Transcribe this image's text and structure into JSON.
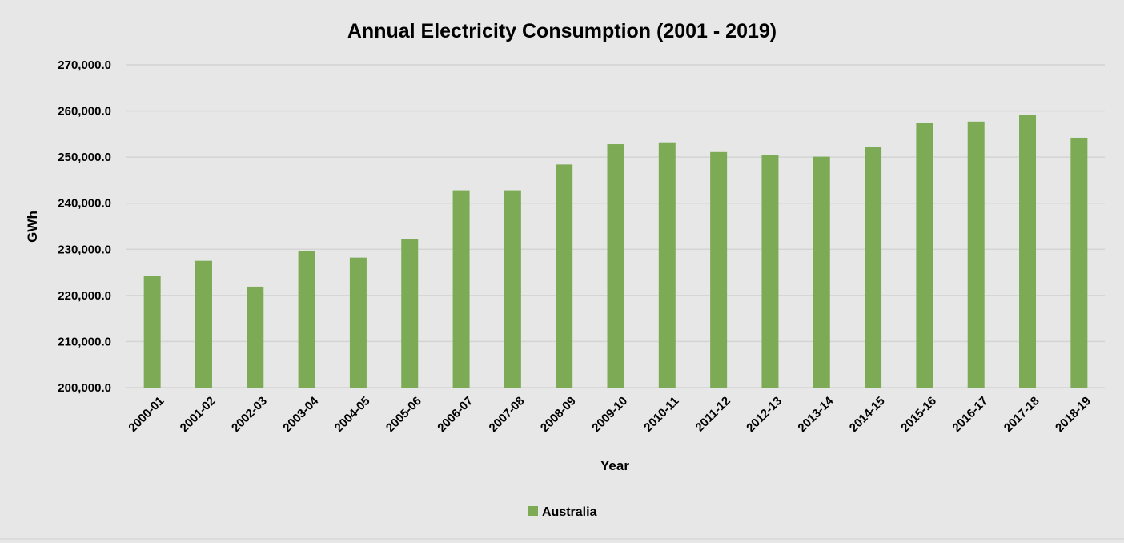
{
  "chart_data": {
    "type": "bar",
    "title": "Annual Electricity Consumption (2001 - 2019)",
    "xlabel": "Year",
    "ylabel": "GWh",
    "categories": [
      "2000-01",
      "2001-02",
      "2002-03",
      "2003-04",
      "2004-05",
      "2005-06",
      "2006-07",
      "2007-08",
      "2008-09",
      "2009-10",
      "2010-11",
      "2011-12",
      "2012-13",
      "2013-14",
      "2014-15",
      "2015-16",
      "2016-17",
      "2017-18",
      "2018-19"
    ],
    "series": [
      {
        "name": "Australia",
        "values": [
          224300,
          227500,
          221900,
          229600,
          228200,
          232300,
          242800,
          242800,
          248400,
          252800,
          253200,
          251100,
          250400,
          250100,
          252200,
          257400,
          257700,
          259100,
          254200
        ]
      }
    ],
    "ylim": [
      200000,
      270000
    ],
    "yticks": [
      200000,
      210000,
      220000,
      230000,
      240000,
      250000,
      260000,
      270000
    ],
    "ytick_labels": [
      "200,000.0",
      "210,000.0",
      "220,000.0",
      "230,000.0",
      "240,000.0",
      "250,000.0",
      "260,000.0",
      "270,000.0"
    ],
    "grid": true,
    "legend_position": "bottom",
    "colors": {
      "bar": "#7dab55",
      "background": "#e7e7e7",
      "grid": "#d4d4d4"
    }
  }
}
